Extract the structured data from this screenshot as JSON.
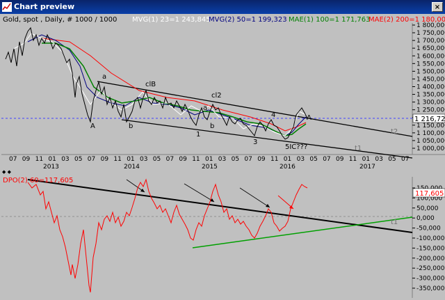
{
  "window": {
    "title": "Chart preview",
    "close_glyph": "×"
  },
  "upper": {
    "legend": [
      {
        "text": "Gold, spot , Daily, # 1000 / 1000",
        "color": "#000000"
      },
      {
        "text": "MVG(1) 23=1 243,845",
        "color": "#ffffff"
      },
      {
        "text": "MVG(2) 50=1 199,323",
        "color": "#000080"
      },
      {
        "text": "MAE(1) 100=1 171,763",
        "color": "#008000"
      },
      {
        "text": "MAE(2) 200=1 180,002",
        "color": "#ff0000"
      }
    ],
    "price_box": "1 216,720",
    "annotations": [
      "a",
      "clB",
      "cl2",
      "a",
      "4",
      "A",
      "b",
      "b",
      "1",
      "3",
      "5IC???",
      "A",
      "t2",
      "t1"
    ]
  },
  "lower": {
    "legend": "DPO(2) 60=117,605",
    "value_box": "117,605",
    "annotations": [
      "t1"
    ]
  },
  "chart_data": [
    {
      "type": "line",
      "title": "",
      "series": [
        {
          "name": "Gold, spot",
          "color": "#000000",
          "x": [
            "2012-07",
            "2012-09",
            "2012-10",
            "2013-01",
            "2013-03",
            "2013-04",
            "2013-06",
            "2013-07",
            "2013-08",
            "2013-10",
            "2013-12",
            "2014-01",
            "2014-03",
            "2014-05",
            "2014-07",
            "2014-09",
            "2014-11",
            "2015-01",
            "2015-03",
            "2015-05",
            "2015-07",
            "2015-08",
            "2015-10",
            "2015-12",
            "2016-01",
            "2016-02",
            "2016-03",
            "2016-04"
          ],
          "y": [
            1600,
            1720,
            1790,
            1680,
            1600,
            1420,
            1250,
            1330,
            1400,
            1300,
            1210,
            1240,
            1380,
            1300,
            1320,
            1230,
            1170,
            1290,
            1180,
            1200,
            1100,
            1130,
            1170,
            1060,
            1100,
            1250,
            1270,
            1220
          ]
        },
        {
          "name": "MVG(1) 23",
          "color": "#ffffff"
        },
        {
          "name": "MVG(2) 50",
          "color": "#000080"
        },
        {
          "name": "MAE(1) 100",
          "color": "#008000"
        },
        {
          "name": "MAE(2) 200",
          "color": "#ff0000"
        }
      ],
      "y_ticks": [
        "1 800,000",
        "1 750,000",
        "1 700,000",
        "1 650,000",
        "1 600,000",
        "1 550,000",
        "1 500,000",
        "1 450,000",
        "1 400,000",
        "1 350,000",
        "1 300,000",
        "1 250,000",
        "1 200,000",
        "1 150,000",
        "1 100,000",
        "1 050,000",
        "1 000,000"
      ],
      "ylim": [
        1000,
        1800
      ],
      "x_ticks": [
        "07",
        "09",
        "11",
        "01",
        "03",
        "05",
        "07",
        "09",
        "11",
        "01",
        "03",
        "05",
        "07",
        "09",
        "11",
        "01",
        "03",
        "05",
        "07",
        "09",
        "11",
        "01",
        "03",
        "05",
        "07",
        "09",
        "11",
        "01",
        "03",
        "05",
        "07"
      ],
      "year_labels": [
        "2013",
        "2014",
        "2015",
        "2016",
        "2017"
      ],
      "grid": false
    },
    {
      "type": "line",
      "title": "",
      "series": [
        {
          "name": "DPO(2) 60",
          "color": "#ff0000",
          "x": [
            "2012-07",
            "2012-09",
            "2012-11",
            "2013-01",
            "2013-03",
            "2013-05",
            "2013-07",
            "2013-09",
            "2013-11",
            "2014-01",
            "2014-03",
            "2014-05",
            "2014-07",
            "2014-09",
            "2014-11",
            "2015-01",
            "2015-03",
            "2015-05",
            "2015-07",
            "2015-09",
            "2015-11",
            "2016-01",
            "2016-02",
            "2016-03",
            "2016-04"
          ],
          "y": [
            150000,
            120000,
            60000,
            50000,
            -30000,
            -200000,
            -350000,
            -100000,
            -60000,
            20000,
            140000,
            40000,
            60000,
            -70000,
            -120000,
            110000,
            20000,
            -20000,
            -60000,
            -80000,
            20000,
            -60000,
            40000,
            160000,
            140000
          ]
        }
      ],
      "y_ticks": [
        "150,000",
        "100,000",
        "50,000",
        "0,000",
        "-50,000",
        "-100,000",
        "-150,000",
        "-200,000",
        "-250,000",
        "-300,000",
        "-350,000"
      ],
      "ylim": [
        -380000,
        180000
      ],
      "grid": false
    }
  ]
}
